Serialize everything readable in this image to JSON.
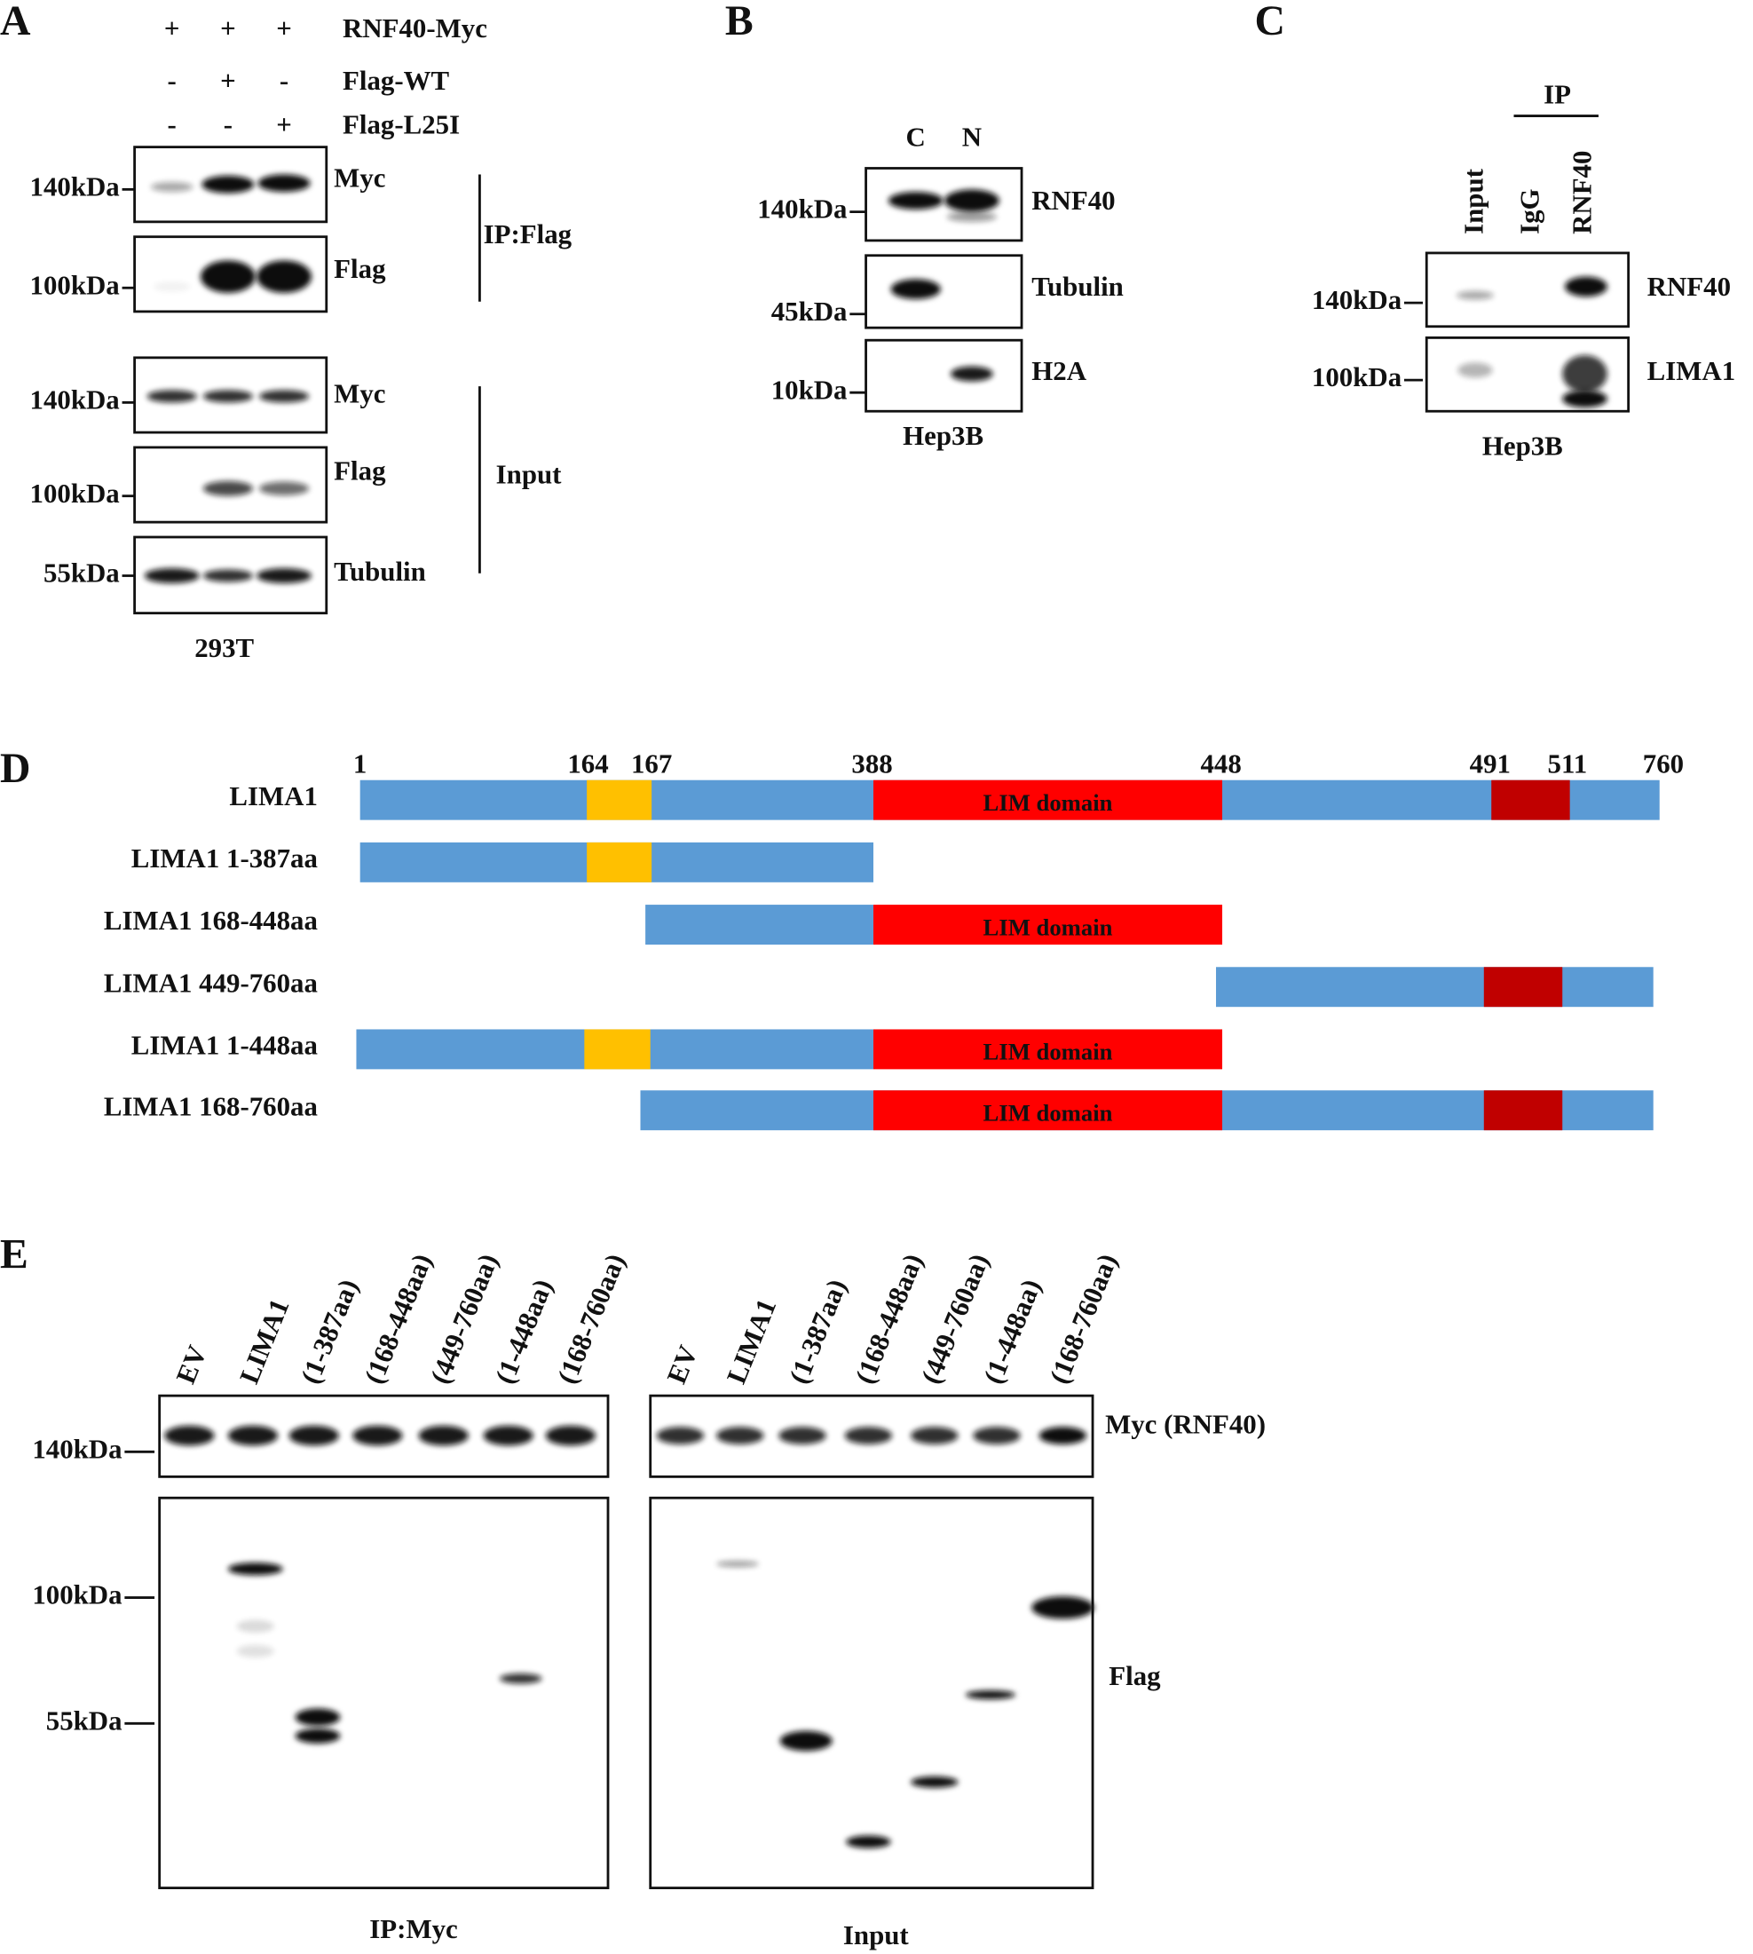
{
  "panels": {
    "A": {
      "label": "A",
      "treatments": [
        {
          "name": "RNF40-Myc",
          "signs": [
            "+",
            "+",
            "+"
          ]
        },
        {
          "name": "Flag-WT",
          "signs": [
            "-",
            "+",
            "-"
          ]
        },
        {
          "name": "Flag-L25I",
          "signs": [
            "-",
            "-",
            "+"
          ]
        }
      ],
      "blots": [
        {
          "marker": "140kDa",
          "antibody": "Myc"
        },
        {
          "marker": "100kDa",
          "antibody": "Flag"
        },
        {
          "marker": "140kDa",
          "antibody": "Myc"
        },
        {
          "marker": "100kDa",
          "antibody": "Flag"
        },
        {
          "marker": "55kDa",
          "antibody": "Tubulin"
        }
      ],
      "groups": [
        "IP:Flag",
        "Input"
      ],
      "cell_line": "293T"
    },
    "B": {
      "label": "B",
      "lanes": [
        "C",
        "N"
      ],
      "blots": [
        {
          "marker": "140kDa",
          "antibody": "RNF40"
        },
        {
          "marker": "45kDa",
          "antibody": "Tubulin"
        },
        {
          "marker": "10kDa",
          "antibody": "H2A"
        }
      ],
      "cell_line": "Hep3B"
    },
    "C": {
      "label": "C",
      "ip": "IP",
      "lanes": [
        "Input",
        "IgG",
        "RNF40"
      ],
      "blots": [
        {
          "marker": "140kDa",
          "antibody": "RNF40"
        },
        {
          "marker": "100kDa",
          "antibody": "LIMA1"
        }
      ],
      "cell_line": "Hep3B"
    },
    "D": {
      "label": "D",
      "positions": [
        1,
        164,
        167,
        388,
        448,
        491,
        511,
        760
      ],
      "domain": "LIM domain",
      "constructs": [
        "LIMA1",
        "LIMA1 1-387aa",
        "LIMA1 168-448aa",
        "LIMA1 449-760aa",
        "LIMA1 1-448aa",
        "LIMA1 168-760aa"
      ]
    },
    "E": {
      "label": "E",
      "lanes": [
        "EV",
        "LIMA1",
        "(1-387aa)",
        "(168-448aa)",
        "(449-760aa)",
        "(1-448aa)",
        "(168-760aa)"
      ],
      "markers": [
        "140kDa",
        "100kDa",
        "55kDa"
      ],
      "antibodies": [
        "Myc (RNF40)",
        "Flag"
      ],
      "groups": [
        "IP:Myc",
        "Input"
      ]
    }
  }
}
